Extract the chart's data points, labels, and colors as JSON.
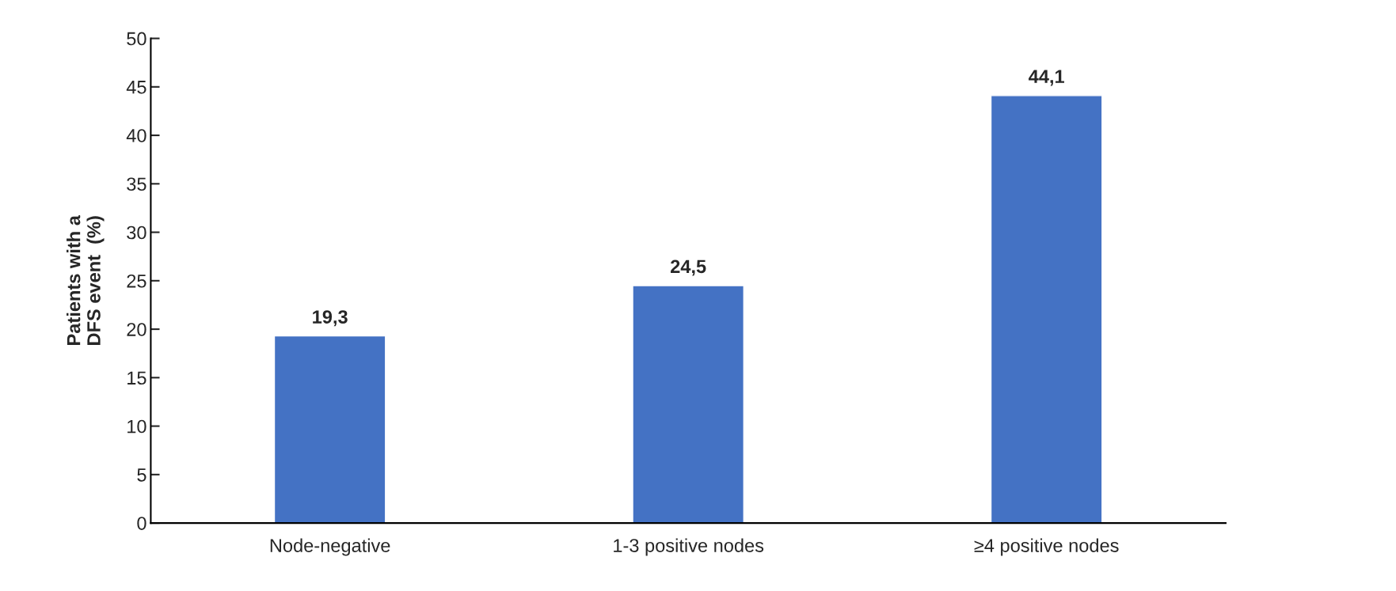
{
  "chart_data": {
    "type": "bar",
    "ylabel": "Patients with a\nDFS event  (%)",
    "categories": [
      "Node-negative",
      "1-3 positive nodes",
      "≥4 positive nodes"
    ],
    "values": [
      19.3,
      24.5,
      44.1
    ],
    "value_labels": [
      "19,3",
      "24,5",
      "44,1"
    ],
    "color": "#4472c4",
    "ylim": [
      0,
      50
    ],
    "yticks": [
      0,
      5,
      10,
      15,
      20,
      25,
      30,
      35,
      40,
      45,
      50
    ],
    "grid": false,
    "legend": false
  }
}
